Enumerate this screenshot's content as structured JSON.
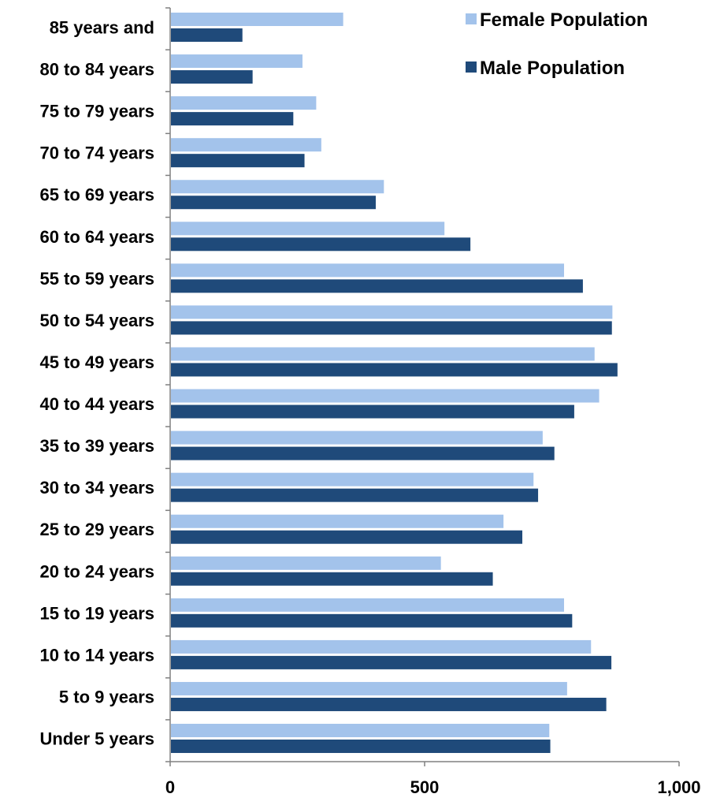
{
  "chart_data": {
    "type": "bar",
    "orientation": "horizontal",
    "categories": [
      "Under 5 years",
      "5 to 9 years",
      "10 to 14 years",
      "15 to 19 years",
      "20 to 24 years",
      "25 to 29 years",
      "30 to 34 years",
      "35 to 39 years",
      "40 to 44 years",
      "45 to 49 years",
      "50 to 54 years",
      "55 to 59 years",
      "60 to 64 years",
      "65 to 69 years",
      "70 to 74 years",
      "75 to 79 years",
      "80 to 84 years",
      "85 years and"
    ],
    "series": [
      {
        "name": "Female Population",
        "color": "#a3c3eb",
        "values": [
          745,
          780,
          827,
          774,
          532,
          655,
          714,
          732,
          843,
          834,
          869,
          774,
          539,
          420,
          297,
          287,
          260,
          340
        ]
      },
      {
        "name": "Male Population",
        "color": "#1f4a7a",
        "values": [
          747,
          857,
          867,
          790,
          634,
          692,
          723,
          755,
          794,
          879,
          868,
          811,
          590,
          404,
          264,
          242,
          162,
          142
        ]
      }
    ],
    "x_ticks": [
      "0",
      "500",
      "1,000"
    ],
    "xlim": [
      0,
      1000
    ],
    "title": "",
    "xlabel": "",
    "ylabel": "",
    "grid": false,
    "legend_position": "top-right"
  }
}
